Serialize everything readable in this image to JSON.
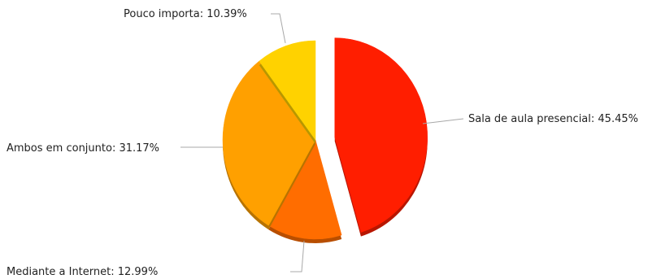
{
  "chart_data": {
    "type": "pie",
    "slices": [
      {
        "label": "Sala de aula presencial",
        "value": 45.45,
        "display": "Sala de aula presencial: 45.45%",
        "color": "#ff1e00",
        "exploded": true
      },
      {
        "label": "Mediante a Internet",
        "value": 12.99,
        "display": "Mediante a Internet: 12.99%",
        "color": "#ff6d00",
        "exploded": false
      },
      {
        "label": "Ambos em conjunto",
        "value": 31.17,
        "display": "Ambos em conjunto: 31.17%",
        "color": "#ffa000",
        "exploded": false
      },
      {
        "label": "Pouco importa",
        "value": 10.39,
        "display": "Pouco importa: 10.39%",
        "color": "#ffd200",
        "exploded": false
      }
    ],
    "start": "12 o'clock",
    "direction": "clockwise",
    "legend": "none",
    "labels": "outside with leader lines"
  }
}
